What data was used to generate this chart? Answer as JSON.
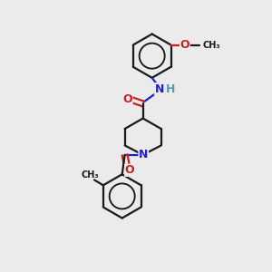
{
  "bg_color": "#ebebeb",
  "bond_color": "#1a1a1a",
  "N_color": "#2020cc",
  "O_color": "#cc2020",
  "H_color": "#5599aa",
  "line_width": 1.6,
  "figsize": [
    3.0,
    3.0
  ],
  "dpi": 100,
  "xlim": [
    0,
    10
  ],
  "ylim": [
    0,
    10
  ]
}
